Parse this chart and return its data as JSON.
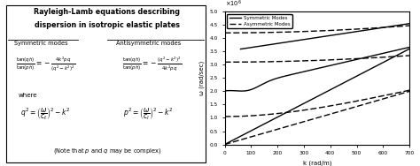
{
  "title_line1": "Rayleigh-Lamb equations describing",
  "title_line2": "dispersion in isotropic elastic plates",
  "xlim": [
    0,
    700
  ],
  "ylim": [
    0,
    5
  ],
  "xlabel": "k (rad/m)",
  "ylabel": "ω (rad/sec)",
  "xticks": [
    0,
    100,
    200,
    300,
    400,
    500,
    600,
    700
  ],
  "yticks": [
    0,
    0.5,
    1.0,
    1.5,
    2.0,
    2.5,
    3.0,
    3.5,
    4.0,
    4.5,
    5.0
  ],
  "legend_sym": "Symmetric Modes",
  "legend_asym": "Asymmetric Modes",
  "bg_color": "#ffffff",
  "line_color": "#000000"
}
